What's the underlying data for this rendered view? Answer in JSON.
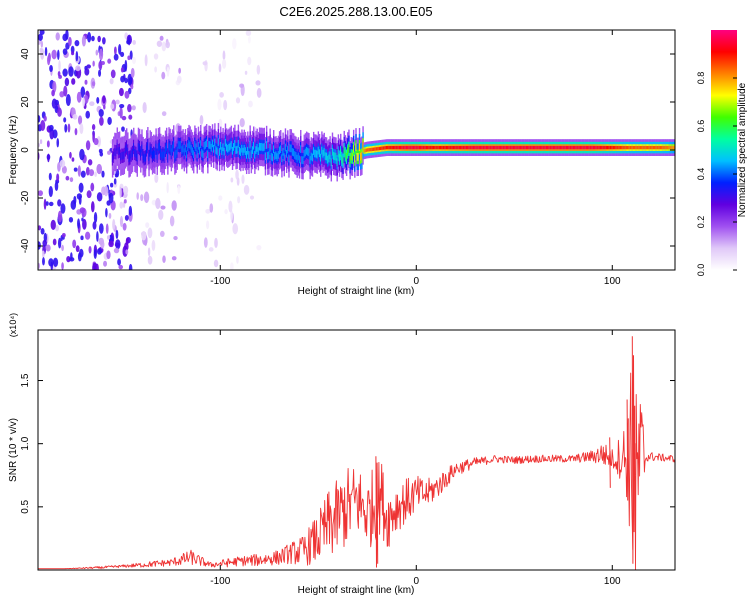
{
  "figure": {
    "title": "C2E6.2025.288.13.00.E05"
  },
  "chart_data": [
    {
      "type": "heatmap",
      "title": "C2E6.2025.288.13.00.E05",
      "xlabel": "Height of straight line (km)",
      "ylabel": "Frequency (Hz)",
      "xlim": [
        -193,
        132
      ],
      "ylim": [
        -50,
        50
      ],
      "x_ticks": [
        -100,
        0,
        100
      ],
      "x_tick_labels": [
        "-100",
        "0",
        "100"
      ],
      "y_ticks": [
        40,
        20,
        0,
        -20,
        -40
      ],
      "y_tick_labels": [
        "40",
        "20",
        "0",
        "-20",
        "-40"
      ],
      "colorbar": {
        "label": "Normalized spectral amplitude",
        "range": [
          0.0,
          1.0
        ],
        "ticks": [
          0.0,
          0.2,
          0.4,
          0.6,
          0.8
        ],
        "tick_labels": [
          "0.0",
          "0.2",
          "0.4",
          "0.6",
          "0.8"
        ],
        "colormap": [
          "#ffffff",
          "#e0c8f8",
          "#a050f0",
          "#6000e0",
          "#0020ff",
          "#00c0ff",
          "#00ffa0",
          "#40ff00",
          "#ffff00",
          "#ff8000",
          "#ff0000",
          "#ff0080"
        ]
      },
      "ridge": {
        "x": [
          -155,
          -140,
          -120,
          -100,
          -80,
          -60,
          -40,
          -25,
          -15,
          -5,
          0,
          10,
          30,
          60,
          90,
          110,
          125,
          132
        ],
        "frequency_hz": [
          -1,
          -1,
          0,
          1,
          0,
          -2,
          -3,
          0,
          1,
          1,
          1,
          1,
          1,
          1,
          1,
          1,
          1,
          1
        ],
        "amplitude": [
          0.3,
          0.35,
          0.4,
          0.45,
          0.45,
          0.42,
          0.5,
          0.85,
          0.9,
          0.95,
          0.95,
          0.9,
          0.95,
          0.95,
          0.95,
          0.85,
          0.85,
          0.8
        ]
      },
      "noise_regions": [
        {
          "x_range": [
            -193,
            -145
          ],
          "frequency_range": [
            -50,
            50
          ],
          "amplitude": 0.3
        },
        {
          "x_range": [
            -145,
            -120
          ],
          "frequency_range": [
            -50,
            50
          ],
          "amplitude": 0.1
        },
        {
          "x_range": [
            -110,
            -80
          ],
          "frequency_range": [
            -50,
            50
          ],
          "amplitude": 0.08
        }
      ]
    },
    {
      "type": "line",
      "xlabel": "Height of straight line (km)",
      "ylabel": "SNR (10 * v/v)",
      "y_scale_label": "(x10⁴)",
      "xlim": [
        -193,
        132
      ],
      "ylim": [
        0,
        1.9
      ],
      "x_ticks": [
        -100,
        0,
        100
      ],
      "x_tick_labels": [
        "-100",
        "0",
        "100"
      ],
      "y_ticks": [
        0.5,
        1.0,
        1.5
      ],
      "y_tick_labels": [
        "0.5",
        "1.0",
        "1.5"
      ],
      "series": [
        {
          "name": "SNR",
          "color": "#ee3333",
          "x": [
            -193,
            -180,
            -160,
            -150,
            -140,
            -125,
            -115,
            -105,
            -100,
            -90,
            -80,
            -70,
            -65,
            -58,
            -50,
            -45,
            -40,
            -35,
            -30,
            -25,
            -22,
            -18,
            -15,
            -10,
            -5,
            0,
            5,
            10,
            15,
            20,
            30,
            40,
            50,
            60,
            70,
            80,
            90,
            95,
            100,
            105,
            108,
            110,
            112,
            114,
            118,
            125,
            132
          ],
          "values": [
            0.01,
            0.01,
            0.02,
            0.03,
            0.04,
            0.06,
            0.1,
            0.04,
            0.05,
            0.07,
            0.08,
            0.1,
            0.13,
            0.15,
            0.25,
            0.35,
            0.42,
            0.5,
            0.55,
            0.45,
            0.5,
            0.6,
            0.4,
            0.5,
            0.55,
            0.6,
            0.6,
            0.65,
            0.72,
            0.8,
            0.85,
            0.88,
            0.87,
            0.88,
            0.88,
            0.88,
            0.9,
            0.92,
            0.88,
            0.9,
            0.9,
            0.85,
            0.5,
            0.9,
            0.9,
            0.89,
            0.88
          ],
          "noise": [
            0.0,
            0.0,
            0.01,
            0.01,
            0.02,
            0.03,
            0.06,
            0.02,
            0.03,
            0.04,
            0.05,
            0.06,
            0.08,
            0.12,
            0.2,
            0.28,
            0.3,
            0.32,
            0.3,
            0.28,
            0.32,
            0.3,
            0.25,
            0.2,
            0.18,
            0.15,
            0.12,
            0.1,
            0.08,
            0.06,
            0.04,
            0.03,
            0.03,
            0.03,
            0.03,
            0.03,
            0.05,
            0.1,
            0.08,
            0.2,
            0.4,
            0.9,
            0.95,
            0.6,
            0.04,
            0.03,
            0.03
          ],
          "spikes": [
            {
              "x": 111,
              "values": [
                1.85,
                0.05,
                1.7,
                0.3,
                1.3
              ]
            },
            {
              "x": 108,
              "values": [
                1.35,
                0.55,
                1.2
              ]
            },
            {
              "x": 99,
              "values": [
                1.05,
                0.65
              ]
            },
            {
              "x": -20,
              "values": [
                0.9,
                0.02,
                0.85,
                0.05
              ]
            }
          ]
        }
      ]
    }
  ]
}
